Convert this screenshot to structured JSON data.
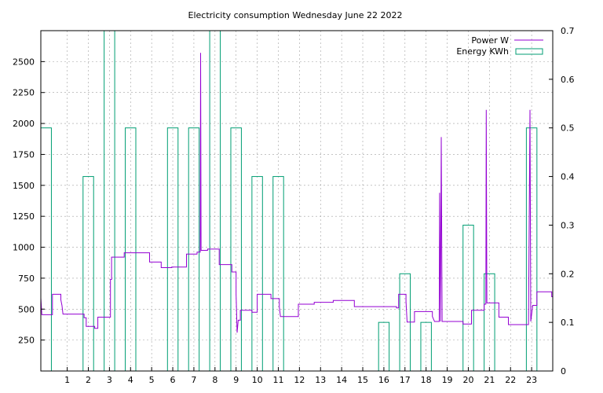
{
  "chart_data": {
    "type": "line",
    "title": "Electricity consumption Wednesday June 22 2022",
    "x_range": [
      -0.25,
      24
    ],
    "x_ticks": [
      1,
      2,
      3,
      4,
      5,
      6,
      7,
      8,
      9,
      10,
      11,
      12,
      13,
      14,
      15,
      16,
      17,
      18,
      19,
      20,
      21,
      22,
      23
    ],
    "y_left_range": [
      0,
      2750
    ],
    "y_left_ticks": [
      250,
      500,
      750,
      1000,
      1250,
      1500,
      1750,
      2000,
      2250,
      2500
    ],
    "y_right_range": [
      0,
      0.7
    ],
    "y_right_ticks": [
      0,
      0.1,
      0.2,
      0.3,
      0.4,
      0.5,
      0.6,
      0.7
    ],
    "grid": true,
    "legend_position": "top-right",
    "series": [
      {
        "name": "Power W",
        "axis": "left",
        "color": "#9400d3",
        "points": [
          [
            -0.25,
            590
          ],
          [
            -0.2,
            455
          ],
          [
            0.3,
            455
          ],
          [
            0.3,
            620
          ],
          [
            0.7,
            620
          ],
          [
            0.7,
            575
          ],
          [
            0.75,
            530
          ],
          [
            0.8,
            460
          ],
          [
            1.8,
            460
          ],
          [
            1.8,
            430
          ],
          [
            1.9,
            430
          ],
          [
            1.9,
            360
          ],
          [
            2.3,
            360
          ],
          [
            2.3,
            345
          ],
          [
            2.45,
            345
          ],
          [
            2.45,
            435
          ],
          [
            3.05,
            435
          ],
          [
            3.05,
            740
          ],
          [
            3.1,
            740
          ],
          [
            3.1,
            920
          ],
          [
            3.7,
            920
          ],
          [
            3.7,
            955
          ],
          [
            4.9,
            955
          ],
          [
            4.9,
            880
          ],
          [
            5.45,
            880
          ],
          [
            5.45,
            835
          ],
          [
            5.95,
            835
          ],
          [
            5.95,
            840
          ],
          [
            6.65,
            840
          ],
          [
            6.65,
            945
          ],
          [
            7.15,
            945
          ],
          [
            7.15,
            960
          ],
          [
            7.3,
            960
          ],
          [
            7.32,
            2570
          ],
          [
            7.34,
            975
          ],
          [
            7.65,
            975
          ],
          [
            7.65,
            985
          ],
          [
            8.2,
            985
          ],
          [
            8.2,
            860
          ],
          [
            8.8,
            860
          ],
          [
            8.8,
            800
          ],
          [
            9.0,
            800
          ],
          [
            9.0,
            620
          ],
          [
            9.05,
            310
          ],
          [
            9.1,
            410
          ],
          [
            9.2,
            410
          ],
          [
            9.2,
            490
          ],
          [
            9.75,
            490
          ],
          [
            9.75,
            475
          ],
          [
            10.0,
            475
          ],
          [
            10.0,
            620
          ],
          [
            10.65,
            620
          ],
          [
            10.65,
            585
          ],
          [
            11.05,
            585
          ],
          [
            11.05,
            515
          ],
          [
            11.1,
            440
          ],
          [
            11.95,
            440
          ],
          [
            11.95,
            540
          ],
          [
            12.7,
            540
          ],
          [
            12.7,
            555
          ],
          [
            13.6,
            555
          ],
          [
            13.6,
            570
          ],
          [
            14.6,
            570
          ],
          [
            14.6,
            520
          ],
          [
            16.6,
            520
          ],
          [
            16.6,
            510
          ],
          [
            16.7,
            510
          ],
          [
            16.7,
            620
          ],
          [
            17.05,
            620
          ],
          [
            17.05,
            560
          ],
          [
            17.1,
            395
          ],
          [
            17.45,
            395
          ],
          [
            17.45,
            480
          ],
          [
            18.3,
            480
          ],
          [
            18.3,
            440
          ],
          [
            18.4,
            400
          ],
          [
            18.62,
            400
          ],
          [
            18.64,
            1440
          ],
          [
            18.68,
            400
          ],
          [
            18.72,
            1890
          ],
          [
            18.76,
            400
          ],
          [
            19.75,
            400
          ],
          [
            19.75,
            380
          ],
          [
            20.15,
            380
          ],
          [
            20.15,
            490
          ],
          [
            20.75,
            490
          ],
          [
            20.75,
            540
          ],
          [
            20.83,
            540
          ],
          [
            20.85,
            2110
          ],
          [
            20.88,
            550
          ],
          [
            21.45,
            550
          ],
          [
            21.45,
            435
          ],
          [
            21.9,
            435
          ],
          [
            21.9,
            375
          ],
          [
            22.85,
            375
          ],
          [
            22.92,
            2110
          ],
          [
            22.96,
            400
          ],
          [
            23.05,
            530
          ],
          [
            23.25,
            530
          ],
          [
            23.25,
            640
          ],
          [
            23.95,
            640
          ],
          [
            23.95,
            600
          ],
          [
            24.0,
            600
          ]
        ]
      },
      {
        "name": "Energy KWh",
        "axis": "right",
        "color": "#009e73",
        "bars": [
          [
            0,
            0.5
          ],
          [
            1,
            0
          ],
          [
            2,
            0.4
          ],
          [
            3,
            0.7
          ],
          [
            4,
            0.5
          ],
          [
            5,
            0
          ],
          [
            6,
            0.5
          ],
          [
            7,
            0.5
          ],
          [
            8,
            0.7
          ],
          [
            9,
            0.5
          ],
          [
            10,
            0.4
          ],
          [
            11,
            0.4
          ],
          [
            12,
            0
          ],
          [
            13,
            0
          ],
          [
            14,
            0
          ],
          [
            15,
            0
          ],
          [
            16,
            0.1
          ],
          [
            17,
            0.2
          ],
          [
            18,
            0.1
          ],
          [
            19,
            0
          ],
          [
            20,
            0.3
          ],
          [
            21,
            0.2
          ],
          [
            22,
            0
          ],
          [
            23,
            0.5
          ]
        ]
      }
    ]
  }
}
